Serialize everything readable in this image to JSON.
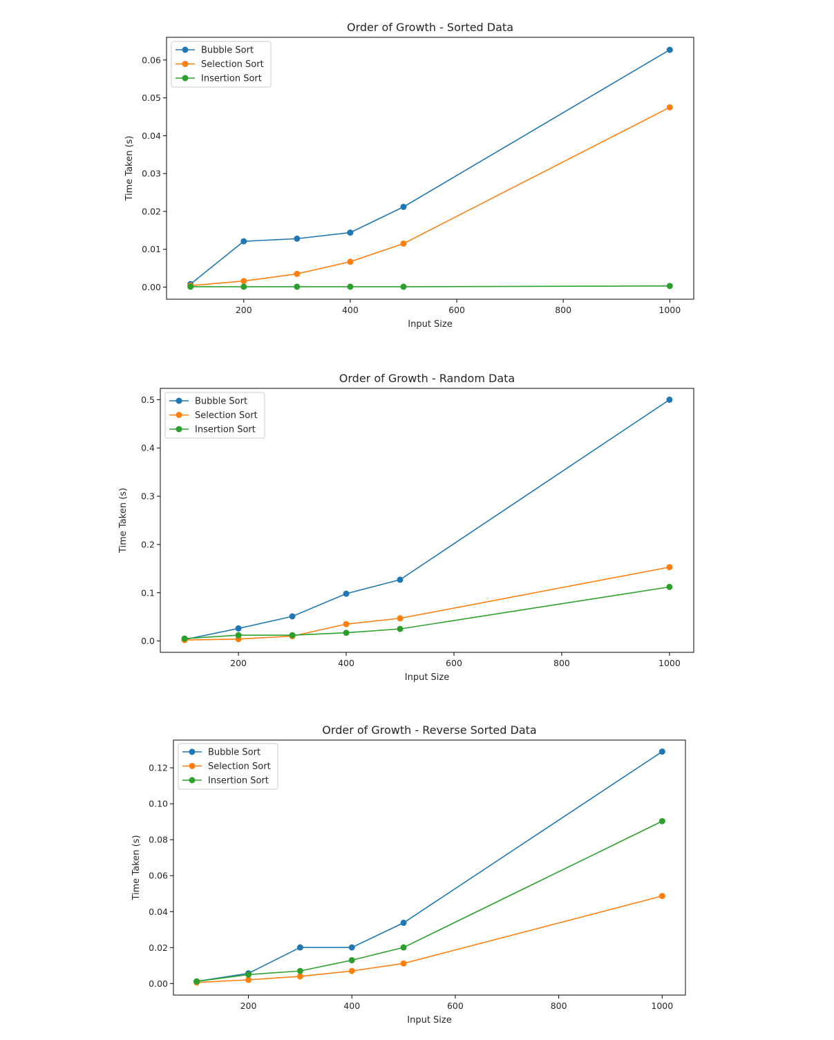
{
  "chart_data": [
    {
      "type": "line",
      "title": "Order of Growth - Sorted Data",
      "xlabel": "Input Size",
      "ylabel": "Time Taken (s)",
      "x": [
        100,
        200,
        300,
        400,
        500,
        1000
      ],
      "xlim": [
        55,
        1045
      ],
      "ylim": [
        -0.0032,
        0.066
      ],
      "xticks": [
        200,
        400,
        600,
        800,
        1000
      ],
      "yticks": [
        0.0,
        0.01,
        0.02,
        0.03,
        0.04,
        0.05,
        0.06
      ],
      "ytick_labels": [
        "0.00",
        "0.01",
        "0.02",
        "0.03",
        "0.04",
        "0.05",
        "0.06"
      ],
      "legend": "top-left",
      "grid": false,
      "series": [
        {
          "name": "Bubble Sort",
          "color": "#1f77b4",
          "values": [
            0.0008,
            0.0121,
            0.0128,
            0.0144,
            0.0212,
            0.0627
          ]
        },
        {
          "name": "Selection Sort",
          "color": "#ff7f0e",
          "values": [
            0.0004,
            0.0016,
            0.0035,
            0.0067,
            0.0115,
            0.0475
          ]
        },
        {
          "name": "Insertion Sort",
          "color": "#2ca02c",
          "values": [
            0.0001,
            0.0001,
            0.0001,
            0.0001,
            0.0001,
            0.0003
          ]
        }
      ]
    },
    {
      "type": "line",
      "title": "Order of Growth - Random Data",
      "xlabel": "Input Size",
      "ylabel": "Time Taken (s)",
      "x": [
        100,
        200,
        300,
        400,
        500,
        1000
      ],
      "xlim": [
        55,
        1045
      ],
      "ylim": [
        -0.0235,
        0.5235
      ],
      "xticks": [
        200,
        400,
        600,
        800,
        1000
      ],
      "yticks": [
        0.0,
        0.1,
        0.2,
        0.3,
        0.4,
        0.5
      ],
      "ytick_labels": [
        "0.0",
        "0.1",
        "0.2",
        "0.3",
        "0.4",
        "0.5"
      ],
      "legend": "top-left",
      "grid": false,
      "series": [
        {
          "name": "Bubble Sort",
          "color": "#1f77b4",
          "values": [
            0.003,
            0.026,
            0.051,
            0.098,
            0.127,
            0.5
          ]
        },
        {
          "name": "Selection Sort",
          "color": "#ff7f0e",
          "values": [
            0.002,
            0.004,
            0.01,
            0.035,
            0.047,
            0.153
          ]
        },
        {
          "name": "Insertion Sort",
          "color": "#2ca02c",
          "values": [
            0.005,
            0.012,
            0.012,
            0.017,
            0.025,
            0.112
          ]
        }
      ]
    },
    {
      "type": "line",
      "title": "Order of Growth - Reverse Sorted Data",
      "xlabel": "Input Size",
      "ylabel": "Time Taken (s)",
      "x": [
        100,
        200,
        300,
        400,
        500,
        1000
      ],
      "xlim": [
        55,
        1045
      ],
      "ylim": [
        -0.0064,
        0.1354
      ],
      "xticks": [
        200,
        400,
        600,
        800,
        1000
      ],
      "yticks": [
        0.0,
        0.02,
        0.04,
        0.06,
        0.08,
        0.1,
        0.12
      ],
      "ytick_labels": [
        "0.00",
        "0.02",
        "0.04",
        "0.06",
        "0.08",
        "0.10",
        "0.12"
      ],
      "legend": "top-left",
      "grid": false,
      "series": [
        {
          "name": "Bubble Sort",
          "color": "#1f77b4",
          "values": [
            0.0012,
            0.0057,
            0.0201,
            0.0201,
            0.0338,
            0.129
          ]
        },
        {
          "name": "Selection Sort",
          "color": "#ff7f0e",
          "values": [
            0.0006,
            0.0021,
            0.004,
            0.007,
            0.0112,
            0.0487
          ]
        },
        {
          "name": "Insertion Sort",
          "color": "#2ca02c",
          "values": [
            0.0012,
            0.005,
            0.007,
            0.013,
            0.0201,
            0.0903
          ]
        }
      ]
    }
  ]
}
